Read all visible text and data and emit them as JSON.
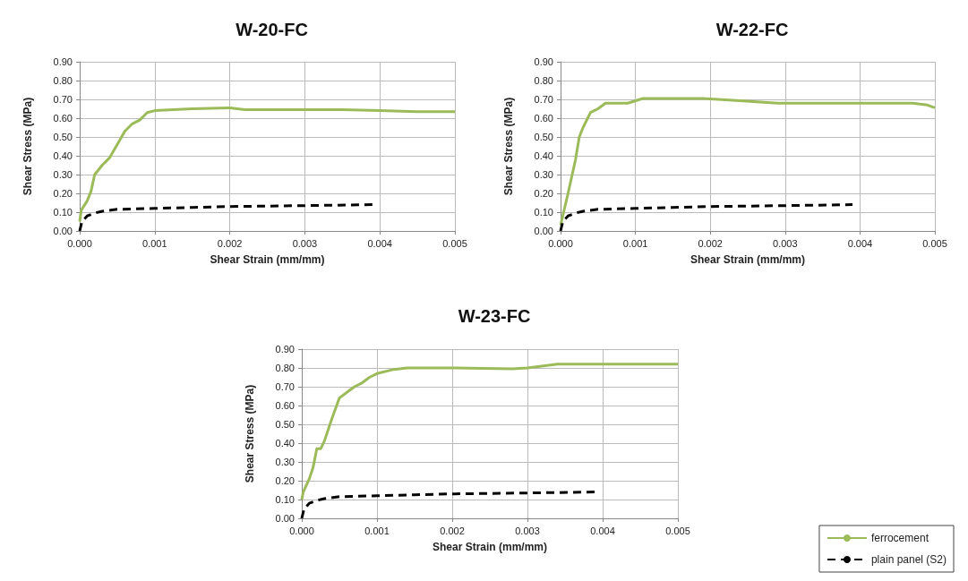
{
  "chart_data": [
    {
      "type": "line",
      "title": "W-20-FC",
      "xlabel": "Shear Strain (mm/mm)",
      "ylabel": "Shear Stress (MPa)",
      "xlim": [
        0,
        0.005
      ],
      "xticks": [
        {
          "value": 0,
          "label": "0.000"
        },
        {
          "value": 0.001,
          "label": "0.001"
        },
        {
          "value": 0.002,
          "label": "0.002"
        },
        {
          "value": 0.003,
          "label": "0.003"
        },
        {
          "value": 0.004,
          "label": "0.004"
        },
        {
          "value": 0.005,
          "label": "0.005"
        }
      ],
      "ylim": [
        0,
        0.9
      ],
      "yticks": [
        {
          "value": 0,
          "label": "0.00"
        },
        {
          "value": 0.1,
          "label": "0.10"
        },
        {
          "value": 0.2,
          "label": "0.20"
        },
        {
          "value": 0.3,
          "label": "0.30"
        },
        {
          "value": 0.4,
          "label": "0.40"
        },
        {
          "value": 0.5,
          "label": "0.50"
        },
        {
          "value": 0.6,
          "label": "0.60"
        },
        {
          "value": 0.7,
          "label": "0.70"
        },
        {
          "value": 0.8,
          "label": "0.80"
        },
        {
          "value": 0.9,
          "label": "0.90"
        }
      ],
      "grid": true,
      "legend": false,
      "series": [
        {
          "color": "#9bbb59",
          "line_style": "solid",
          "x": [
            0,
            2e-05,
            0.0001,
            0.00015,
            0.0002,
            0.0003,
            0.0004,
            0.0005,
            0.0006,
            0.0007,
            0.0008,
            0.0009,
            0.001,
            0.0015,
            0.002,
            0.0022,
            0.003,
            0.0035,
            0.004,
            0.0045,
            0.005
          ],
          "values": [
            0.05,
            0.11,
            0.16,
            0.21,
            0.3,
            0.35,
            0.39,
            0.46,
            0.53,
            0.57,
            0.59,
            0.63,
            0.64,
            0.65,
            0.655,
            0.645,
            0.645,
            0.645,
            0.64,
            0.635,
            0.635
          ]
        },
        {
          "color": "#000000",
          "line_style": "dashed",
          "x": [
            0,
            3e-05,
            0.0001,
            0.0002,
            0.0003,
            0.0005,
            0.001,
            0.0015,
            0.002,
            0.003,
            0.0039
          ],
          "values": [
            0,
            0.05,
            0.08,
            0.095,
            0.105,
            0.115,
            0.12,
            0.125,
            0.13,
            0.135,
            0.14
          ]
        }
      ]
    },
    {
      "type": "line",
      "title": "W-22-FC",
      "xlabel": "Shear Strain (mm/mm)",
      "ylabel": "Shear Stress (MPa)",
      "xlim": [
        0,
        0.005
      ],
      "xticks": [
        {
          "value": 0,
          "label": "0.000"
        },
        {
          "value": 0.001,
          "label": "0.001"
        },
        {
          "value": 0.002,
          "label": "0.002"
        },
        {
          "value": 0.003,
          "label": "0.003"
        },
        {
          "value": 0.004,
          "label": "0.004"
        },
        {
          "value": 0.005,
          "label": "0.005"
        }
      ],
      "ylim": [
        0,
        0.9
      ],
      "yticks": [
        {
          "value": 0,
          "label": "0.00"
        },
        {
          "value": 0.1,
          "label": "0.10"
        },
        {
          "value": 0.2,
          "label": "0.20"
        },
        {
          "value": 0.3,
          "label": "0.30"
        },
        {
          "value": 0.4,
          "label": "0.40"
        },
        {
          "value": 0.5,
          "label": "0.50"
        },
        {
          "value": 0.6,
          "label": "0.60"
        },
        {
          "value": 0.7,
          "label": "0.70"
        },
        {
          "value": 0.8,
          "label": "0.80"
        },
        {
          "value": 0.9,
          "label": "0.90"
        }
      ],
      "grid": true,
      "legend": false,
      "series": [
        {
          "color": "#9bbb59",
          "line_style": "solid",
          "x": [
            0,
            0.0001,
            0.0002,
            0.00025,
            0.0003,
            0.0004,
            0.0005,
            0.0006,
            0.0009,
            0.0011,
            0.0019,
            0.0023,
            0.0029,
            0.004,
            0.0047,
            0.0049,
            0.005
          ],
          "values": [
            0.03,
            0.2,
            0.38,
            0.5,
            0.55,
            0.63,
            0.65,
            0.68,
            0.68,
            0.705,
            0.705,
            0.695,
            0.68,
            0.68,
            0.68,
            0.67,
            0.655
          ]
        },
        {
          "color": "#000000",
          "line_style": "dashed",
          "x": [
            0,
            3e-05,
            0.0001,
            0.0002,
            0.0003,
            0.0005,
            0.001,
            0.0015,
            0.002,
            0.003,
            0.0039
          ],
          "values": [
            0,
            0.05,
            0.08,
            0.095,
            0.105,
            0.115,
            0.12,
            0.125,
            0.13,
            0.135,
            0.14
          ]
        }
      ]
    },
    {
      "type": "line",
      "title": "W-23-FC",
      "xlabel": "Shear Strain (mm/mm)",
      "ylabel": "Shear Stress (MPa)",
      "xlim": [
        0,
        0.005
      ],
      "xticks": [
        {
          "value": 0,
          "label": "0.000"
        },
        {
          "value": 0.001,
          "label": "0.001"
        },
        {
          "value": 0.002,
          "label": "0.002"
        },
        {
          "value": 0.003,
          "label": "0.003"
        },
        {
          "value": 0.004,
          "label": "0.004"
        },
        {
          "value": 0.005,
          "label": "0.005"
        }
      ],
      "ylim": [
        0,
        0.9
      ],
      "yticks": [
        {
          "value": 0,
          "label": "0.00"
        },
        {
          "value": 0.1,
          "label": "0.10"
        },
        {
          "value": 0.2,
          "label": "0.20"
        },
        {
          "value": 0.3,
          "label": "0.30"
        },
        {
          "value": 0.4,
          "label": "0.40"
        },
        {
          "value": 0.5,
          "label": "0.50"
        },
        {
          "value": 0.6,
          "label": "0.60"
        },
        {
          "value": 0.7,
          "label": "0.70"
        },
        {
          "value": 0.8,
          "label": "0.80"
        },
        {
          "value": 0.9,
          "label": "0.90"
        }
      ],
      "grid": true,
      "legend": "bottom right",
      "series": [
        {
          "name": "ferrocement",
          "color": "#9bbb59",
          "line_style": "solid",
          "x": [
            0,
            2e-05,
            0.0001,
            0.00015,
            0.0002,
            0.00025,
            0.0003,
            0.0004,
            0.0005,
            0.0006,
            0.0007,
            0.0008,
            0.0009,
            0.001,
            0.0012,
            0.0014,
            0.002,
            0.0028,
            0.003,
            0.0034,
            0.005
          ],
          "values": [
            0.1,
            0.14,
            0.21,
            0.27,
            0.37,
            0.37,
            0.41,
            0.53,
            0.64,
            0.67,
            0.7,
            0.72,
            0.75,
            0.77,
            0.79,
            0.8,
            0.8,
            0.795,
            0.8,
            0.82,
            0.82
          ]
        },
        {
          "name": "plain panel (S2)",
          "color": "#000000",
          "line_style": "dashed",
          "x": [
            0,
            3e-05,
            0.0001,
            0.0002,
            0.0003,
            0.0005,
            0.001,
            0.0015,
            0.002,
            0.003,
            0.0039
          ],
          "values": [
            0,
            0.05,
            0.08,
            0.095,
            0.105,
            0.115,
            0.12,
            0.125,
            0.13,
            0.135,
            0.14
          ]
        }
      ]
    }
  ]
}
